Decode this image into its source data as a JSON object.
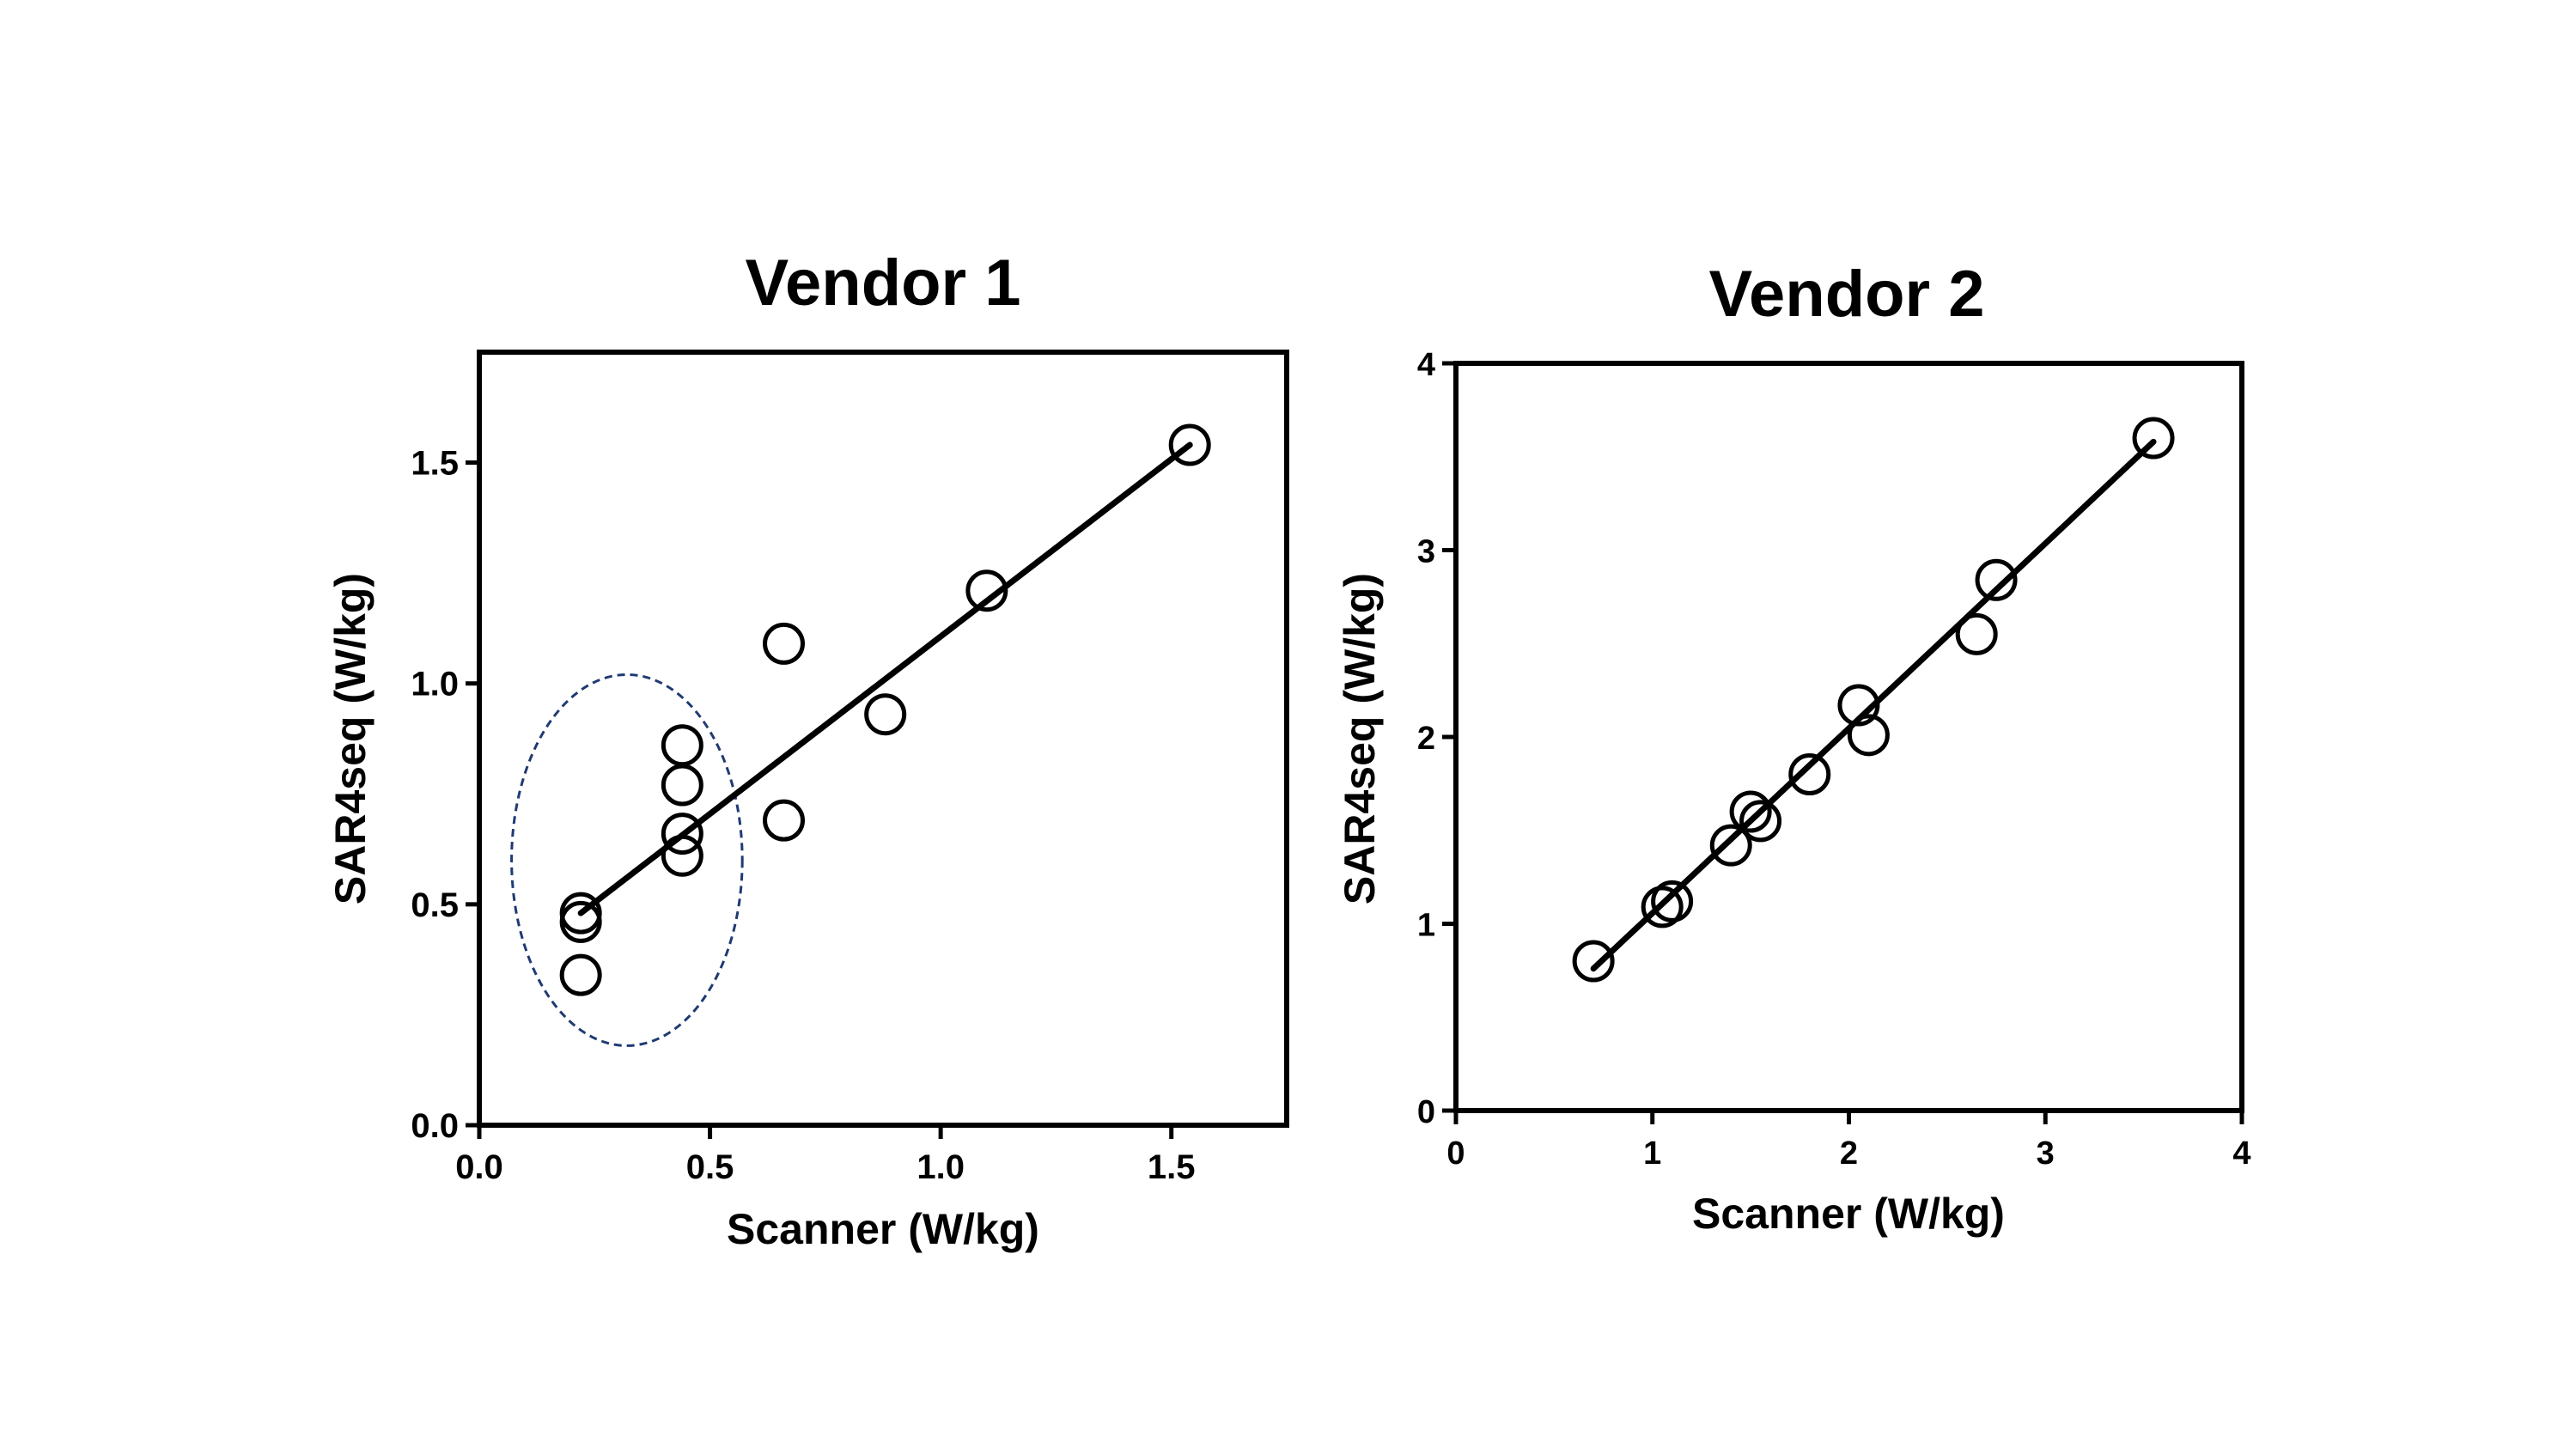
{
  "chart_data": [
    {
      "type": "scatter",
      "title": "Vendor  1",
      "xlabel": "Scanner (W/kg)",
      "ylabel": "SAR4seq (W/kg)",
      "xlim": [
        0,
        1.75
      ],
      "ylim": [
        0,
        1.75
      ],
      "xticks": [
        "0.0",
        "0.5",
        "1.0",
        "1.5"
      ],
      "yticks": [
        "0.0",
        "0.5",
        "1.0",
        "1.5"
      ],
      "grid": false,
      "legend": "none",
      "series": [
        {
          "points": [
            {
              "x": 0.22,
              "y": 0.48
            },
            {
              "x": 0.22,
              "y": 0.46
            },
            {
              "x": 0.22,
              "y": 0.34
            },
            {
              "x": 0.44,
              "y": 0.86
            },
            {
              "x": 0.44,
              "y": 0.77
            },
            {
              "x": 0.44,
              "y": 0.66
            },
            {
              "x": 0.44,
              "y": 0.61
            },
            {
              "x": 0.66,
              "y": 1.09
            },
            {
              "x": 0.66,
              "y": 0.69
            },
            {
              "x": 0.88,
              "y": 0.93
            },
            {
              "x": 1.1,
              "y": 1.21
            },
            {
              "x": 1.54,
              "y": 1.54
            }
          ]
        }
      ],
      "fit_line": {
        "from": [
          0.22,
          0.48
        ],
        "to": [
          1.54,
          1.54
        ]
      },
      "annotation": {
        "shape": "dashed-ellipse",
        "center": [
          0.32,
          0.6
        ],
        "rx": 0.25,
        "ry": 0.42,
        "color": "#1f3a73"
      }
    },
    {
      "type": "scatter",
      "title": "Vendor  2",
      "xlabel": "Scanner (W/kg)",
      "ylabel": "SAR4seq (W/kg)",
      "xlim": [
        0,
        4
      ],
      "ylim": [
        0,
        4
      ],
      "xticks": [
        "0",
        "1",
        "2",
        "3",
        "4"
      ],
      "yticks": [
        "0",
        "1",
        "2",
        "3",
        "4"
      ],
      "grid": false,
      "legend": "none",
      "series": [
        {
          "points": [
            {
              "x": 0.7,
              "y": 0.8
            },
            {
              "x": 1.05,
              "y": 1.09
            },
            {
              "x": 1.1,
              "y": 1.12
            },
            {
              "x": 1.4,
              "y": 1.42
            },
            {
              "x": 1.5,
              "y": 1.6
            },
            {
              "x": 1.55,
              "y": 1.55
            },
            {
              "x": 1.8,
              "y": 1.8
            },
            {
              "x": 2.05,
              "y": 2.17
            },
            {
              "x": 2.1,
              "y": 2.01
            },
            {
              "x": 2.65,
              "y": 2.55
            },
            {
              "x": 2.75,
              "y": 2.84
            },
            {
              "x": 3.55,
              "y": 3.6
            }
          ]
        }
      ],
      "fit_line": {
        "from": [
          0.7,
          0.76
        ],
        "to": [
          3.55,
          3.58
        ]
      }
    }
  ]
}
